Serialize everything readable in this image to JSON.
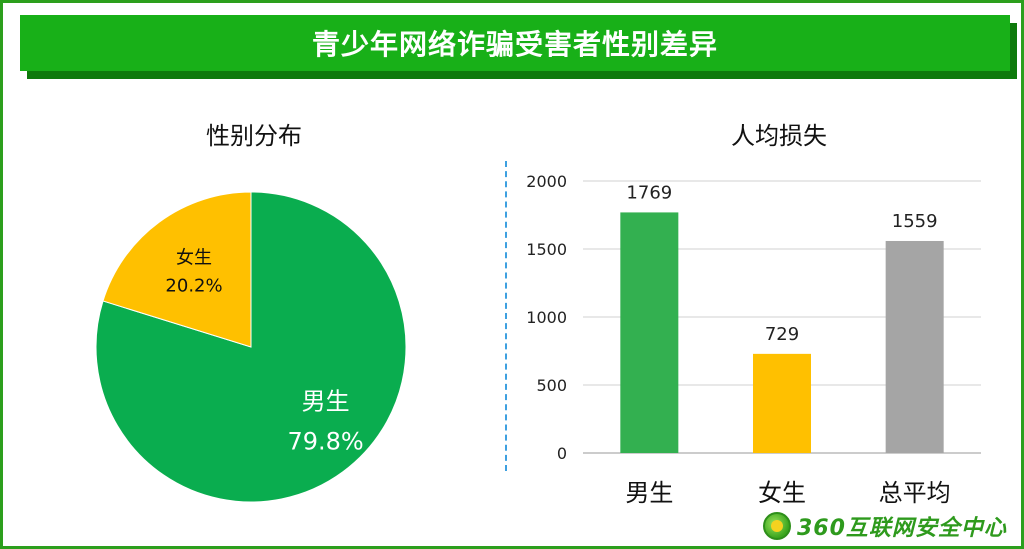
{
  "header": {
    "title": "青少年网络诈骗受害者性别差异"
  },
  "colors": {
    "green": "#0aad4f",
    "yellow": "#ffc000",
    "gray": "#a5a5a5",
    "bar_green": "#33b050"
  },
  "chart_data": [
    {
      "type": "pie",
      "title": "性别分布",
      "slices": [
        {
          "label": "男生",
          "value": 79.8,
          "display": "79.8%",
          "color": "#0aad4f"
        },
        {
          "label": "女生",
          "value": 20.2,
          "display": "20.2%",
          "color": "#ffc000"
        }
      ]
    },
    {
      "type": "bar",
      "title": "人均损失",
      "categories": [
        "男生",
        "女生",
        "总平均"
      ],
      "values": [
        1769,
        729,
        1559
      ],
      "colors": [
        "#33b050",
        "#ffc000",
        "#a5a5a5"
      ],
      "ylim": [
        0,
        2000
      ],
      "yticks": [
        0,
        500,
        1000,
        1500,
        2000
      ],
      "grid": true
    }
  ],
  "logo": {
    "text": "360互联网安全中心",
    "icon": "360-logo-icon"
  }
}
